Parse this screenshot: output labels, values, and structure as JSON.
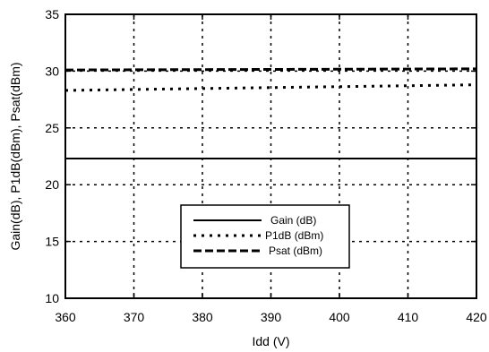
{
  "chart_data": {
    "type": "line",
    "xlabel": "Idd (V)",
    "ylabel": "Gain(dB), P1dB(dBm), Psat(dBm)",
    "xlim": [
      360,
      420
    ],
    "ylim": [
      10,
      35
    ],
    "xticks": [
      360,
      370,
      380,
      390,
      400,
      410,
      420
    ],
    "yticks": [
      10,
      15,
      20,
      25,
      30,
      35
    ],
    "grid": true,
    "legend_position": "bottom-center",
    "series": [
      {
        "name": "Gain (dB)",
        "style": "solid",
        "x": [
          360,
          420
        ],
        "y": [
          22.3,
          22.3
        ]
      },
      {
        "name": "P1dB (dBm)",
        "style": "dotted",
        "x": [
          360,
          420
        ],
        "y": [
          28.3,
          28.8
        ]
      },
      {
        "name": "Psat (dBm)",
        "style": "dashed",
        "x": [
          360,
          420
        ],
        "y": [
          30.1,
          30.2
        ]
      }
    ]
  }
}
